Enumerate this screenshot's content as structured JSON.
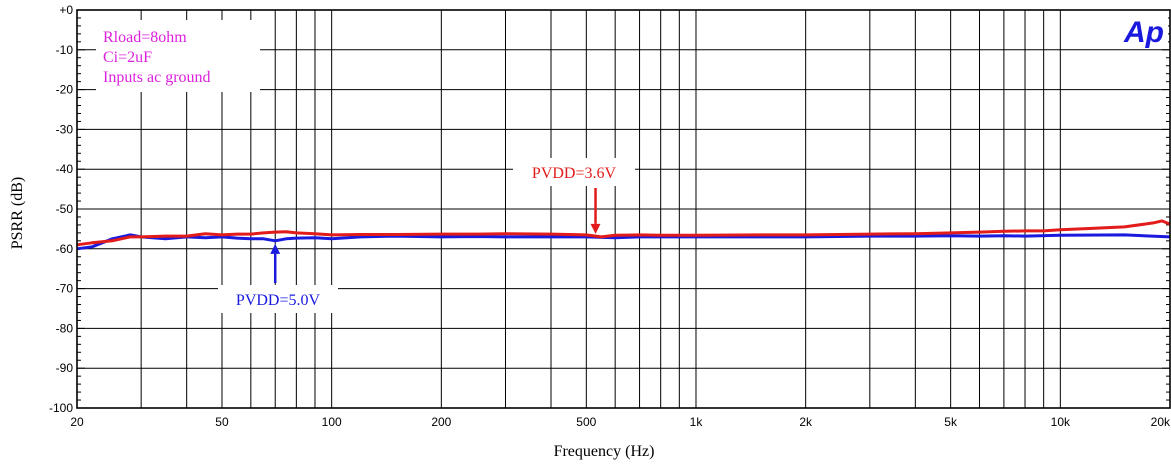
{
  "chart_data": {
    "type": "line",
    "title": "",
    "xlabel": "Frequency (Hz)",
    "ylabel": "PSRR (dB)",
    "x_scale": "log",
    "xlim": [
      20,
      20000
    ],
    "ylim": [
      -100,
      0
    ],
    "grid": true,
    "x_ticks": [
      {
        "value": 20,
        "label": "20"
      },
      {
        "value": 50,
        "label": "50"
      },
      {
        "value": 100,
        "label": "100"
      },
      {
        "value": 200,
        "label": "200"
      },
      {
        "value": 500,
        "label": "500"
      },
      {
        "value": 1000,
        "label": "1k"
      },
      {
        "value": 2000,
        "label": "2k"
      },
      {
        "value": 5000,
        "label": "5k"
      },
      {
        "value": 10000,
        "label": "10k"
      },
      {
        "value": 20000,
        "label": "20k"
      }
    ],
    "y_ticks": [
      {
        "value": 0,
        "label": "+0"
      },
      {
        "value": -10,
        "label": "-10"
      },
      {
        "value": -20,
        "label": "-20"
      },
      {
        "value": -30,
        "label": "-30"
      },
      {
        "value": -40,
        "label": "-40"
      },
      {
        "value": -50,
        "label": "-50"
      },
      {
        "value": -60,
        "label": "-60"
      },
      {
        "value": -70,
        "label": "-70"
      },
      {
        "value": -80,
        "label": "-80"
      },
      {
        "value": -90,
        "label": "-90"
      },
      {
        "value": -100,
        "label": "-100"
      }
    ],
    "series": [
      {
        "name": "PVDD=5.0V",
        "color": "#1a1adf",
        "points": [
          [
            20,
            -60
          ],
          [
            22,
            -59.5
          ],
          [
            25,
            -57.5
          ],
          [
            28,
            -56.5
          ],
          [
            30,
            -57
          ],
          [
            35,
            -57.5
          ],
          [
            40,
            -57
          ],
          [
            45,
            -57.2
          ],
          [
            50,
            -57
          ],
          [
            55,
            -57.3
          ],
          [
            60,
            -57.5
          ],
          [
            65,
            -57.5
          ],
          [
            70,
            -58
          ],
          [
            75,
            -57.5
          ],
          [
            80,
            -57.3
          ],
          [
            90,
            -57.2
          ],
          [
            100,
            -57.5
          ],
          [
            120,
            -57
          ],
          [
            150,
            -56.8
          ],
          [
            200,
            -57
          ],
          [
            250,
            -56.9
          ],
          [
            300,
            -57
          ],
          [
            400,
            -57
          ],
          [
            500,
            -57
          ],
          [
            600,
            -57.2
          ],
          [
            700,
            -57
          ],
          [
            800,
            -57
          ],
          [
            1000,
            -57
          ],
          [
            1500,
            -57
          ],
          [
            2000,
            -57
          ],
          [
            3000,
            -56.8
          ],
          [
            4000,
            -56.8
          ],
          [
            5000,
            -56.7
          ],
          [
            6000,
            -56.8
          ],
          [
            7000,
            -56.7
          ],
          [
            8000,
            -56.8
          ],
          [
            10000,
            -56.6
          ],
          [
            15000,
            -56.5
          ],
          [
            20000,
            -57
          ]
        ]
      },
      {
        "name": "PVDD=3.6V",
        "color": "#e21b1b",
        "points": [
          [
            20,
            -59
          ],
          [
            22,
            -58.5
          ],
          [
            25,
            -58
          ],
          [
            28,
            -57
          ],
          [
            30,
            -57
          ],
          [
            35,
            -56.8
          ],
          [
            40,
            -56.8
          ],
          [
            45,
            -56.2
          ],
          [
            50,
            -56.5
          ],
          [
            55,
            -56.3
          ],
          [
            60,
            -56.3
          ],
          [
            65,
            -56
          ],
          [
            70,
            -55.8
          ],
          [
            75,
            -55.7
          ],
          [
            80,
            -56
          ],
          [
            90,
            -56.2
          ],
          [
            100,
            -56.5
          ],
          [
            120,
            -56.4
          ],
          [
            150,
            -56.4
          ],
          [
            200,
            -56.3
          ],
          [
            250,
            -56.3
          ],
          [
            300,
            -56.2
          ],
          [
            400,
            -56.3
          ],
          [
            500,
            -56.5
          ],
          [
            550,
            -57
          ],
          [
            600,
            -56.6
          ],
          [
            700,
            -56.5
          ],
          [
            800,
            -56.6
          ],
          [
            1000,
            -56.6
          ],
          [
            1500,
            -56.5
          ],
          [
            2000,
            -56.5
          ],
          [
            3000,
            -56.3
          ],
          [
            4000,
            -56.2
          ],
          [
            5000,
            -56
          ],
          [
            6000,
            -55.8
          ],
          [
            7000,
            -55.6
          ],
          [
            8000,
            -55.5
          ],
          [
            9000,
            -55.5
          ],
          [
            10000,
            -55.2
          ],
          [
            12000,
            -54.9
          ],
          [
            15000,
            -54.5
          ],
          [
            18000,
            -53.5
          ],
          [
            19000,
            -53
          ],
          [
            20000,
            -53.8
          ]
        ]
      }
    ],
    "annotations": [
      {
        "text": "PVDD=3.6V",
        "color": "#e21b1b",
        "arrow_to": [
          530,
          -57
        ]
      },
      {
        "text": "PVDD=5.0V",
        "color": "#1a1adf",
        "arrow_to": [
          70,
          -58
        ]
      }
    ],
    "legend_box": {
      "lines": [
        "Rload=8ohm",
        "Ci=2uF",
        "Inputs ac ground"
      ],
      "color": "#dd22dd",
      "placement": "top-left"
    },
    "logo": {
      "text": "Ap",
      "color": "#1a1adf"
    }
  }
}
